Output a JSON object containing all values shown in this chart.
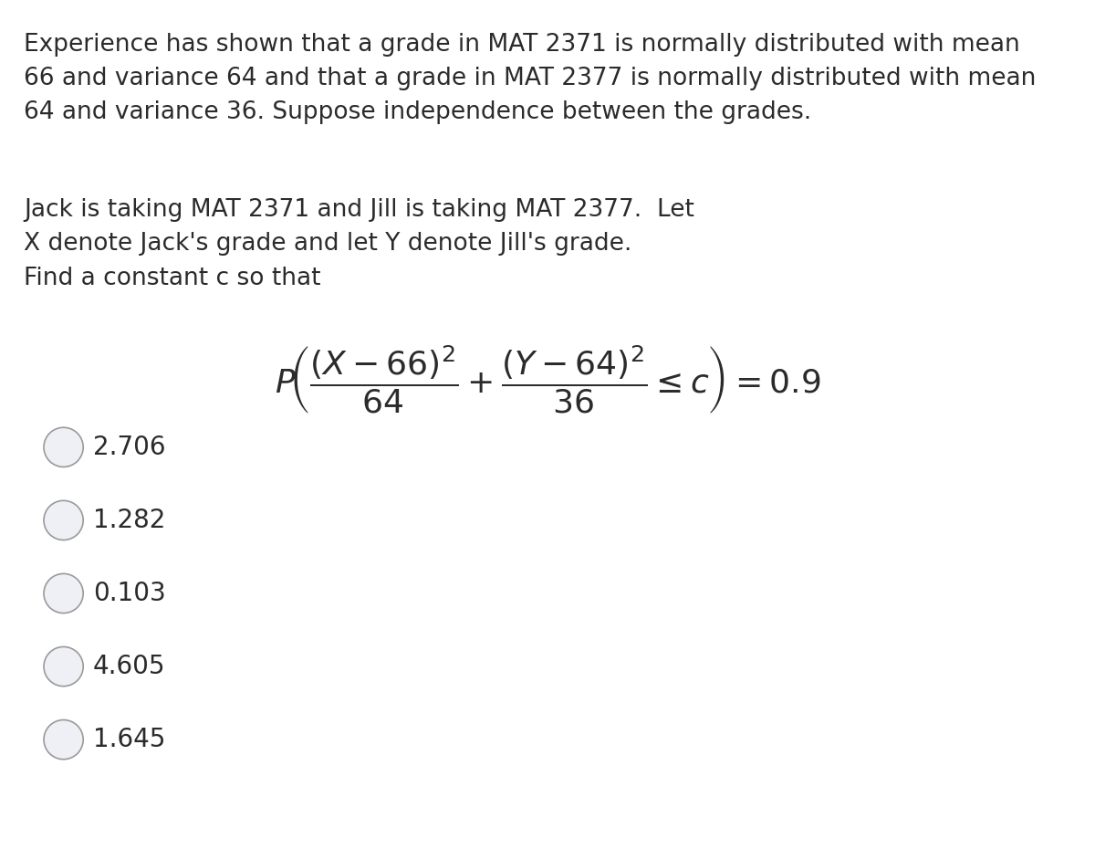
{
  "background_color": "#ffffff",
  "text_color": "#2b2b2b",
  "circle_fill_color": "#eef0f5",
  "circle_edge_color": "#9a9a9a",
  "paragraph1": "Experience has shown that a grade in MAT 2371 is normally distributed with mean\n66 and variance 64 and that a grade in MAT 2377 is normally distributed with mean\n64 and variance 36. Suppose independence between the grades.",
  "paragraph2_line1": "Jack is taking MAT 2371 and Jill is taking MAT 2377.  Let",
  "paragraph2_line2": "X denote Jack's grade and let Y denote Jill's grade.",
  "paragraph2_line3": "Find a constant c so that",
  "choices": [
    "2.706",
    "1.282",
    "0.103",
    "4.605",
    "1.645"
  ],
  "body_fontsize": 19,
  "formula_fontsize": 26,
  "choice_fontsize": 20,
  "fig_width": 12.0,
  "fig_height": 9.42,
  "dpi": 100
}
